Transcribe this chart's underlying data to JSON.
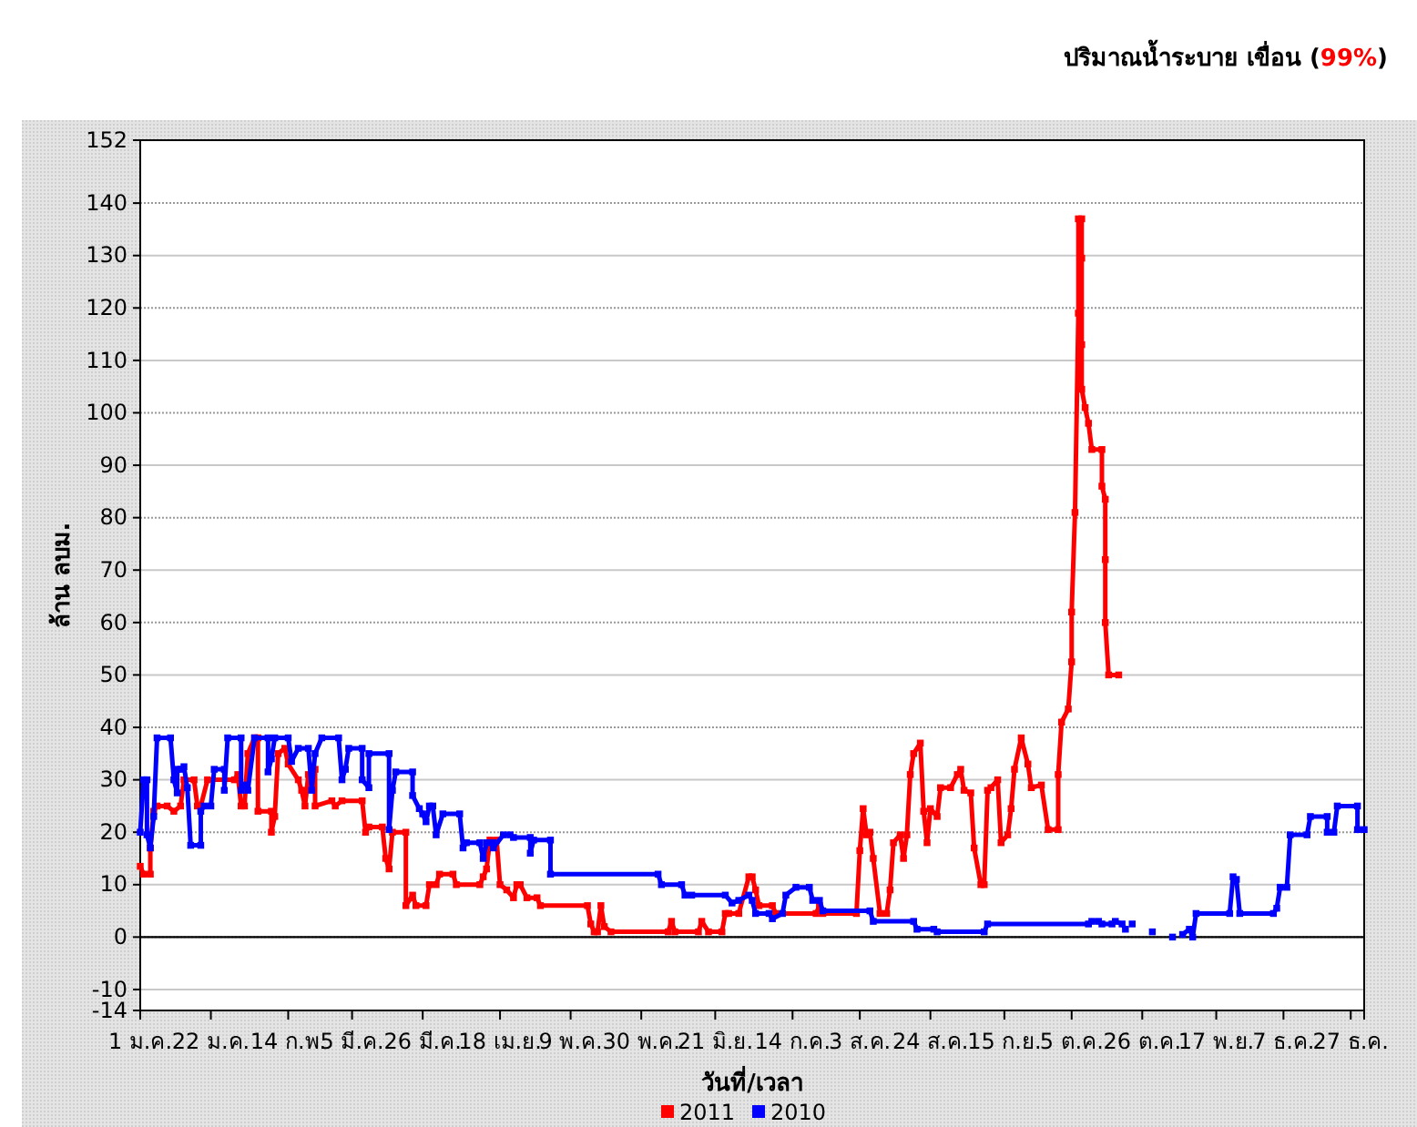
{
  "chart_data": {
    "type": "line",
    "title": "ปริมาณน้ำระบาย เขื่อน (99%)",
    "xlabel": "วันที่/เวลา",
    "ylabel": "ล้าน ลบม.",
    "xlim": [
      "--01-01",
      "--12-31"
    ],
    "xticks": [
      {
        "value": "--01-01",
        "label": "1 ม.ค."
      },
      {
        "value": "--01-22",
        "label": "22 ม.ค."
      },
      {
        "value": "--02-14",
        "label": "14 ก.พ."
      },
      {
        "value": "--03-05",
        "label": "5 มี.ค."
      },
      {
        "value": "--03-26",
        "label": "26 มี.ค."
      },
      {
        "value": "--04-18",
        "label": "18 เม.ย."
      },
      {
        "value": "--05-09",
        "label": "9 พ.ค."
      },
      {
        "value": "--05-30",
        "label": "30 พ.ค."
      },
      {
        "value": "--06-21",
        "label": "21 มิ.ย."
      },
      {
        "value": "--07-14",
        "label": "14 ก.ค."
      },
      {
        "value": "--08-03",
        "label": "3 ส.ค."
      },
      {
        "value": "--08-24",
        "label": "24 ส.ค."
      },
      {
        "value": "--09-15",
        "label": "15 ก.ย."
      },
      {
        "value": "--10-05",
        "label": "5 ต.ค."
      },
      {
        "value": "--10-26",
        "label": "26 ต.ค."
      },
      {
        "value": "--11-17",
        "label": "17 พ.ย."
      },
      {
        "value": "--12-07",
        "label": "7 ธ.ค."
      },
      {
        "value": "--12-27",
        "label": "27 ธ.ค."
      }
    ],
    "ylim": [
      -14,
      152
    ],
    "yticks": [
      -14,
      -10,
      0,
      10,
      20,
      30,
      40,
      50,
      60,
      70,
      80,
      90,
      100,
      110,
      120,
      130,
      140,
      152
    ],
    "grid": "y",
    "legend": "bottom",
    "marker": "square",
    "line_style": "solid",
    "ref_lines": [
      {
        "axis": "y",
        "value": 0,
        "color": "#000000"
      }
    ],
    "series": [
      {
        "name": "2011",
        "color": "#ff0000",
        "x": [
          "--01-01",
          "--01-02",
          "--01-04",
          "--01-04",
          "--01-05",
          "--01-06",
          "--01-09",
          "--01-11",
          "--01-13",
          "--01-14",
          "--01-17",
          "--01-18",
          "--01-19",
          "--01-21",
          "--01-29",
          "--01-30",
          "--01-31",
          "--02-01",
          "--02-02",
          "--02-04",
          "--02-05",
          "--02-05",
          "--02-09",
          "--02-09",
          "--02-10",
          "--02-11",
          "--02-13",
          "--02-14",
          "--02-17",
          "--02-18",
          "--02-19",
          "--02-20",
          "--02-22",
          "--02-22",
          "--02-27",
          "--02-28",
          "--03-02",
          "--03-08",
          "--03-09",
          "--03-10",
          "--03-14",
          "--03-15",
          "--03-16",
          "--03-17",
          "--03-21",
          "--03-21",
          "--03-23",
          "--03-24",
          "--03-27",
          "--03-28",
          "--03-30",
          "--03-31",
          "--04-04",
          "--04-05",
          "--04-12",
          "--04-13",
          "--04-14",
          "--04-15",
          "--04-17",
          "--04-18",
          "--04-20",
          "--04-22",
          "--04-23",
          "--04-24",
          "--04-26",
          "--04-29",
          "--04-30",
          "--05-14",
          "--05-15",
          "--05-16",
          "--05-17",
          "--05-18",
          "--05-19",
          "--05-21",
          "--06-07",
          "--06-08",
          "--06-09",
          "--06-16",
          "--06-17",
          "--06-19",
          "--06-23",
          "--06-24",
          "--06-25",
          "--06-28",
          "--07-01",
          "--07-02",
          "--07-03",
          "--07-04",
          "--07-08",
          "--07-09",
          "--07-21",
          "--07-22",
          "--07-23",
          "--08-02",
          "--08-03",
          "--08-04",
          "--08-05",
          "--08-06",
          "--08-07",
          "--08-09",
          "--08-11",
          "--08-12",
          "--08-13",
          "--08-15",
          "--08-16",
          "--08-17",
          "--08-18",
          "--08-19",
          "--08-21",
          "--08-22",
          "--08-23",
          "--08-24",
          "--08-26",
          "--08-27",
          "--08-30",
          "--09-01",
          "--09-02",
          "--09-03",
          "--09-05",
          "--09-06",
          "--09-08",
          "--09-09",
          "--09-10",
          "--09-11",
          "--09-13",
          "--09-14",
          "--09-16",
          "--09-17",
          "--09-18",
          "--09-20",
          "--09-22",
          "--09-23",
          "--09-26",
          "--09-28",
          "--10-01",
          "--10-01",
          "--10-02",
          "--10-04",
          "--10-05",
          "--10-05",
          "--10-06",
          "--10-07",
          "--10-07",
          "--10-08",
          "--10-08",
          "--10-08",
          "--10-08",
          "--10-09",
          "--10-10",
          "--10-11",
          "--10-14",
          "--10-14",
          "--10-15",
          "--10-15",
          "--10-15",
          "--10-16",
          "--10-19"
        ],
        "values": [
          13.5,
          12,
          12,
          17,
          24,
          25,
          25,
          24,
          25,
          30,
          30,
          25,
          25,
          30,
          30,
          31,
          25,
          25,
          35,
          38,
          38,
          24,
          24,
          20,
          23,
          35,
          36,
          33,
          30,
          28,
          25,
          31,
          32,
          25,
          26,
          25,
          26,
          26,
          20,
          21,
          21,
          15,
          13,
          20,
          20,
          6,
          8,
          6,
          6,
          10,
          10,
          12,
          12,
          10,
          10,
          11.5,
          13,
          18.5,
          18.5,
          10,
          9,
          7.5,
          10,
          10,
          7.5,
          7.5,
          6,
          6,
          2.5,
          1,
          1,
          6,
          2,
          1,
          1,
          3,
          1,
          1,
          3,
          1,
          1,
          4.5,
          4.5,
          4.5,
          11.5,
          11.5,
          9,
          6,
          6,
          4.5,
          4.5,
          6,
          4.5,
          4.5,
          16.5,
          24.5,
          19.5,
          20,
          15,
          4.5,
          4.5,
          9,
          18,
          19.5,
          15,
          19.5,
          31,
          35,
          37,
          24,
          18,
          24.5,
          23,
          28.5,
          28.5,
          31,
          32,
          28,
          27.5,
          17,
          10,
          10,
          28,
          28.5,
          30,
          18,
          19.5,
          24.5,
          32,
          38,
          33,
          28.5,
          29,
          20.5,
          20.5,
          31,
          41,
          43.5,
          52.5,
          62,
          81,
          119,
          137,
          137,
          129.5,
          113,
          104.5,
          101,
          98,
          93,
          93,
          86,
          83.5,
          72,
          60,
          50,
          50
        ]
      },
      {
        "name": "2010",
        "color": "#0000ff",
        "x": [
          "--01-01",
          "--01-02",
          "--01-03",
          "--01-03",
          "--01-04",
          "--01-05",
          "--01-06",
          "--01-10",
          "--01-11",
          "--01-12",
          "--01-12",
          "--01-13",
          "--01-14",
          "--01-15",
          "--01-16",
          "--01-19",
          "--01-19",
          "--01-20",
          "--01-22",
          "--01-23",
          "--01-26",
          "--01-26",
          "--01-27",
          "--01-31",
          "--01-31",
          "--02-01",
          "--02-02",
          "--02-04",
          "--02-08",
          "--02-08",
          "--02-09",
          "--02-10",
          "--02-14",
          "--02-15",
          "--02-17",
          "--02-20",
          "--02-21",
          "--02-22",
          "--02-24",
          "--03-01",
          "--03-02",
          "--03-03",
          "--03-04",
          "--03-08",
          "--03-08",
          "--03-10",
          "--03-10",
          "--03-16",
          "--03-16",
          "--03-17",
          "--03-18",
          "--03-23",
          "--03-23",
          "--03-25",
          "--03-26",
          "--03-27",
          "--03-28",
          "--03-29",
          "--03-30",
          "--04-01",
          "--04-06",
          "--04-07",
          "--04-08",
          "--04-12",
          "--04-13",
          "--04-14",
          "--04-16",
          "--04-16",
          "--04-19",
          "--04-21",
          "--04-22",
          "--04-27",
          "--04-27",
          "--04-28",
          "--05-03",
          "--05-03",
          "--06-04",
          "--06-05",
          "--06-11",
          "--06-12",
          "--06-14",
          "--06-24",
          "--06-26",
          "--06-28",
          "--07-01",
          "--07-02",
          "--07-03",
          "--07-07",
          "--07-08",
          "--07-11",
          "--07-12",
          "--07-15",
          "--07-19",
          "--07-20",
          "--07-22",
          "--07-23",
          "--08-06",
          "--08-07",
          "--08-19",
          "--08-20",
          "--08-25",
          "--08-26",
          "--09-09",
          "--09-10",
          "--10-10",
          "--10-11",
          "--10-13",
          "--10-14",
          "--10-17",
          "--10-18",
          "--10-20",
          "--10-21",
          "--10-22",
          "--10-23",
          "--10-24",
          "--10-29",
          "--11-01",
          "--11-04",
          "--11-05",
          "--11-07",
          "--11-09",
          "--11-10",
          "--11-11",
          "--11-21",
          "--11-22",
          "--11-23",
          "--11-24",
          "--12-04",
          "--12-05",
          "--12-06",
          "--12-08",
          "--12-09",
          "--12-14",
          "--12-15",
          "--12-20",
          "--12-20",
          "--12-22",
          "--12-23",
          "--12-29",
          "--12-29",
          "--12-31"
        ],
        "values": [
          20,
          30,
          30,
          19.5,
          17,
          23,
          38,
          38,
          30,
          27.5,
          32,
          32,
          32.5,
          28.5,
          17.5,
          17.5,
          24,
          25,
          25,
          32,
          32,
          28,
          38,
          38,
          28,
          29,
          28,
          38,
          38,
          31.5,
          34,
          38,
          38,
          33.5,
          36,
          36,
          28,
          35,
          38,
          38,
          30,
          32,
          36,
          36,
          30,
          28.5,
          35,
          35,
          20.5,
          28,
          31.5,
          31.5,
          27,
          24.5,
          23.5,
          22,
          25,
          25,
          19.5,
          23.5,
          23.5,
          17,
          18,
          18,
          15,
          18,
          18,
          17,
          19.5,
          19.5,
          19,
          19,
          16,
          18.5,
          18.5,
          12,
          12,
          10,
          10,
          8,
          8,
          8,
          6.5,
          7,
          8,
          7,
          4.5,
          4.5,
          3.5,
          4.5,
          8,
          9.5,
          9.5,
          7,
          7,
          5,
          5,
          3,
          3,
          1.5,
          1.5,
          1,
          1,
          2.5,
          2.5,
          3,
          3,
          2.5,
          2.5,
          3,
          2.5,
          1.5,
          null,
          2.5,
          null,
          1,
          null,
          0,
          null,
          0.5,
          1.5,
          0,
          4.5,
          4.5,
          11.5,
          11,
          4.5,
          4.5,
          5.5,
          9.5,
          9.5,
          19.5,
          19.5,
          23,
          23,
          20,
          20,
          25,
          25,
          20.5,
          20.5
        ]
      }
    ]
  }
}
